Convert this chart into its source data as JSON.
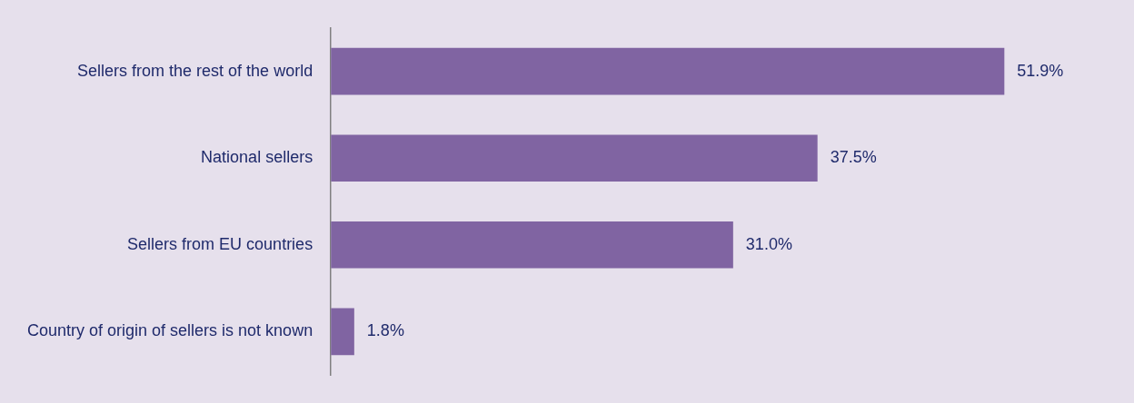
{
  "chart_data": {
    "type": "bar",
    "orientation": "horizontal",
    "categories": [
      "Sellers from the rest of the world",
      "National sellers",
      "Sellers from EU countries",
      "Country of origin of sellers is not known"
    ],
    "values": [
      51.9,
      37.5,
      31.0,
      1.8
    ],
    "value_labels": [
      "51.9%",
      "37.5%",
      "31.0%",
      "1.8%"
    ],
    "color": "#8064a2",
    "tick_labels": "y"
  }
}
